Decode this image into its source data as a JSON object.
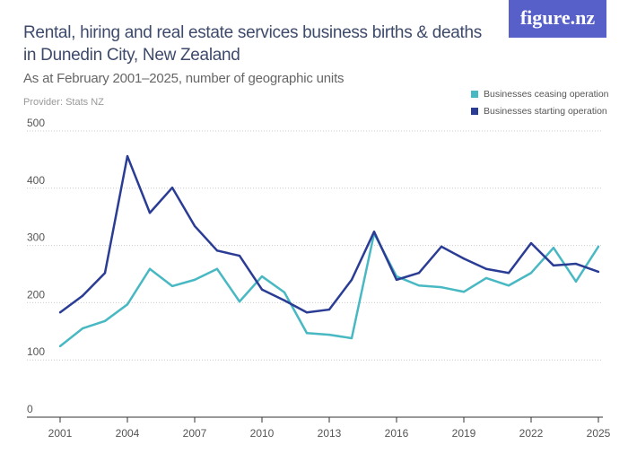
{
  "header": {
    "title": "Rental, hiring and real estate services business births & deaths in Dunedin City, New Zealand",
    "subtitle": "As at February 2001–2025, number of geographic units",
    "provider": "Provider: Stats NZ",
    "logo": "figure.nz"
  },
  "chart_data": {
    "type": "line",
    "title": "Rental, hiring and real estate services business births & deaths in Dunedin City, New Zealand",
    "xlabel": "",
    "ylabel": "",
    "x": [
      2001,
      2002,
      2003,
      2004,
      2005,
      2006,
      2007,
      2008,
      2009,
      2010,
      2011,
      2012,
      2013,
      2014,
      2015,
      2016,
      2017,
      2018,
      2019,
      2020,
      2021,
      2022,
      2023,
      2024,
      2025
    ],
    "xticks": [
      "2001",
      "2004",
      "2007",
      "2010",
      "2013",
      "2016",
      "2019",
      "2022",
      "2025"
    ],
    "yticks": [
      "0",
      "100",
      "200",
      "300",
      "400",
      "500"
    ],
    "ylim": [
      0,
      500
    ],
    "grid": true,
    "legend_position": "top-right",
    "series": [
      {
        "name": "Businesses ceasing operation",
        "color": "#48b8c3",
        "values": [
          124,
          155,
          168,
          197,
          259,
          229,
          240,
          259,
          202,
          246,
          218,
          147,
          144,
          138,
          321,
          246,
          230,
          227,
          219,
          243,
          230,
          252,
          296,
          237,
          298
        ]
      },
      {
        "name": "Businesses starting operation",
        "color": "#2a3c94",
        "values": [
          183,
          212,
          252,
          456,
          357,
          401,
          334,
          291,
          282,
          223,
          204,
          183,
          188,
          240,
          324,
          240,
          252,
          298,
          277,
          259,
          252,
          304,
          265,
          268,
          254
        ]
      }
    ]
  }
}
